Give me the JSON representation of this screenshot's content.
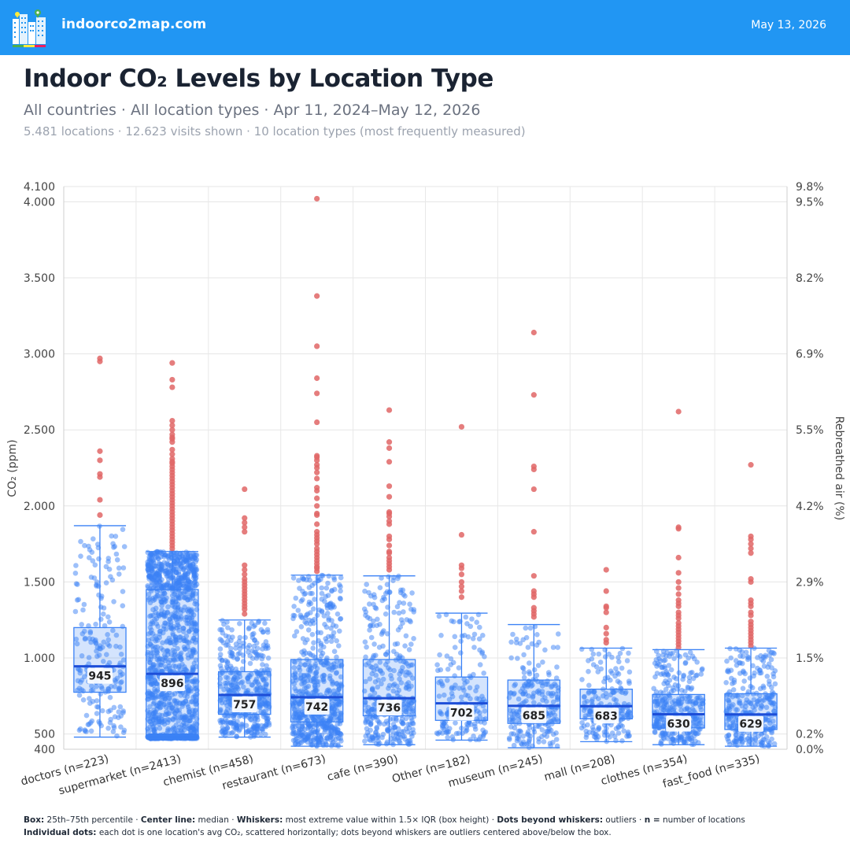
{
  "header": {
    "site_name": "indoorco2map.com",
    "date": "May 13, 2026"
  },
  "page": {
    "title": "Indoor CO₂ Levels by Location Type",
    "subtitle": "All countries · All location types · Apr 11, 2024–May 12, 2026",
    "meta": "5.481 locations · 12.623 visits shown · 10 location types (most frequently measured)"
  },
  "footnote": {
    "line1": [
      {
        "b": "Box:",
        "t": " 25th–75th percentile · "
      },
      {
        "b": "Center line:",
        "t": " median · "
      },
      {
        "b": "Whiskers:",
        "t": " most extreme value within 1.5× IQR (box height) · "
      },
      {
        "b": "Dots beyond whiskers:",
        "t": " outliers · "
      },
      {
        "b": "n =",
        "t": " number of locations"
      }
    ],
    "line2": [
      {
        "b": "Individual dots:",
        "t": " each dot is one location's avg CO₂, scattered horizontally; dots beyond whiskers are outliers centered above/below the box."
      }
    ]
  },
  "chart_data": {
    "type": "box",
    "title": "Indoor CO₂ Levels by Location Type",
    "ylabel": "CO₂ (ppm)",
    "y2label": "Rebreathed air (%)",
    "ylim": [
      400,
      4100
    ],
    "yticks": [
      {
        "v": 400,
        "label": "400"
      },
      {
        "v": 500,
        "label": "500"
      },
      {
        "v": 1000,
        "label": "1.000"
      },
      {
        "v": 1500,
        "label": "1.500"
      },
      {
        "v": 2000,
        "label": "2.000"
      },
      {
        "v": 2500,
        "label": "2.500"
      },
      {
        "v": 3000,
        "label": "3.000"
      },
      {
        "v": 3500,
        "label": "3.500"
      },
      {
        "v": 4000,
        "label": "4.000"
      },
      {
        "v": 4100,
        "label": "4.100"
      }
    ],
    "y2ticks": [
      {
        "v": 400,
        "label": "0.0%"
      },
      {
        "v": 500,
        "label": "0.2%"
      },
      {
        "v": 1000,
        "label": "1.5%"
      },
      {
        "v": 1500,
        "label": "2.9%"
      },
      {
        "v": 2000,
        "label": "4.2%"
      },
      {
        "v": 2500,
        "label": "5.5%"
      },
      {
        "v": 3000,
        "label": "6.9%"
      },
      {
        "v": 3500,
        "label": "8.2%"
      },
      {
        "v": 4000,
        "label": "9.5%"
      },
      {
        "v": 4100,
        "label": "9.8%"
      }
    ],
    "grid": true,
    "box_color": "#3b82f6",
    "outlier_color": "#e06666",
    "categories": [
      {
        "name": "doctors",
        "label": "doctors (n=223)",
        "n": 223,
        "min": 480,
        "q1": 775,
        "median": 945,
        "q3": 1200,
        "max": 1870,
        "median_label": "945",
        "outliers": [
          2970,
          2950,
          2360,
          2300,
          2210,
          2190,
          2040,
          1940
        ]
      },
      {
        "name": "supermarket",
        "label": "supermarket (n=2413)",
        "n": 2413,
        "min": 470,
        "q1": 490,
        "median": 896,
        "q3": 1450,
        "max": 1700,
        "median_label": "896",
        "outliers": [
          2940,
          2830,
          2780,
          2560,
          2530,
          2500,
          2470,
          2450,
          2440,
          2420,
          2370,
          2340,
          2310,
          2290,
          2280,
          2260,
          2240,
          2220,
          2200,
          2180,
          2160,
          2140,
          2120,
          2100,
          2080,
          2060,
          2040,
          2020,
          2000,
          1980,
          1960,
          1940,
          1920,
          1900,
          1880,
          1860,
          1840,
          1820,
          1800,
          1780,
          1760,
          1740,
          1720
        ]
      },
      {
        "name": "chemist",
        "label": "chemist (n=458)",
        "n": 458,
        "min": 480,
        "q1": 630,
        "median": 757,
        "q3": 910,
        "max": 1250,
        "median_label": "757",
        "outliers": [
          2110,
          1920,
          1890,
          1860,
          1830,
          1610,
          1580,
          1550,
          1520,
          1500,
          1480,
          1460,
          1440,
          1420,
          1400,
          1380,
          1360,
          1340,
          1320,
          1290
        ]
      },
      {
        "name": "restaurant",
        "label": "restaurant (n=673)",
        "n": 673,
        "min": 420,
        "q1": 580,
        "median": 742,
        "q3": 990,
        "max": 1545,
        "median_label": "742",
        "outliers": [
          4020,
          3380,
          3050,
          2840,
          2740,
          2550,
          2330,
          2320,
          2300,
          2270,
          2250,
          2220,
          2180,
          2120,
          2100,
          2050,
          2000,
          1950,
          1940,
          1880,
          1830,
          1810,
          1790,
          1770,
          1750,
          1720,
          1700,
          1680,
          1660,
          1640,
          1620,
          1600,
          1590,
          1570
        ]
      },
      {
        "name": "cafe",
        "label": "cafe (n=390)",
        "n": 390,
        "min": 430,
        "q1": 620,
        "median": 736,
        "q3": 990,
        "max": 1540,
        "median_label": "736",
        "outliers": [
          2630,
          2420,
          2380,
          2290,
          2130,
          2060,
          1960,
          1950,
          1930,
          1900,
          1880,
          1800,
          1780,
          1740,
          1700,
          1690,
          1660,
          1640,
          1620,
          1600,
          1580
        ]
      },
      {
        "name": "Other",
        "label": "Other (n=182)",
        "n": 182,
        "min": 460,
        "q1": 590,
        "median": 702,
        "q3": 875,
        "max": 1295,
        "median_label": "702",
        "outliers": [
          2520,
          1810,
          1610,
          1590,
          1550,
          1500,
          1470,
          1440,
          1400
        ]
      },
      {
        "name": "museum",
        "label": "museum (n=245)",
        "n": 245,
        "min": 410,
        "q1": 570,
        "median": 685,
        "q3": 855,
        "max": 1220,
        "median_label": "685",
        "outliers": [
          3140,
          2730,
          2260,
          2240,
          2110,
          1830,
          1540,
          1440,
          1420,
          1400,
          1330,
          1310,
          1290,
          1270
        ]
      },
      {
        "name": "mall",
        "label": "mall (n=208)",
        "n": 208,
        "min": 450,
        "q1": 600,
        "median": 683,
        "q3": 795,
        "max": 1065,
        "median_label": "683",
        "outliers": [
          1580,
          1440,
          1340,
          1330,
          1300,
          1200,
          1160,
          1120,
          1100
        ]
      },
      {
        "name": "clothes",
        "label": "clothes (n=354)",
        "n": 354,
        "min": 430,
        "q1": 540,
        "median": 630,
        "q3": 760,
        "max": 1055,
        "median_label": "630",
        "outliers": [
          2620,
          1860,
          1850,
          1660,
          1560,
          1500,
          1460,
          1420,
          1380,
          1360,
          1340,
          1300,
          1280,
          1260,
          1230,
          1210,
          1190,
          1170,
          1150,
          1130,
          1110,
          1090,
          1070
        ]
      },
      {
        "name": "fast_food",
        "label": "fast_food (n=335)",
        "n": 335,
        "min": 420,
        "q1": 530,
        "median": 629,
        "q3": 765,
        "max": 1065,
        "median_label": "629",
        "outliers": [
          2270,
          1800,
          1780,
          1750,
          1720,
          1690,
          1520,
          1500,
          1380,
          1360,
          1340,
          1300,
          1280,
          1240,
          1220,
          1200,
          1180,
          1160,
          1140,
          1120,
          1100,
          1080
        ]
      }
    ]
  }
}
